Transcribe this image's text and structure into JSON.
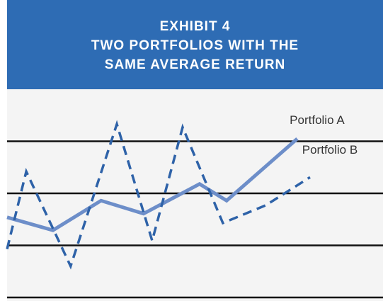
{
  "chart_data": {
    "type": "line",
    "title": [
      "EXHIBIT 4",
      "TWO PORTFOLIOS WITH THE",
      "SAME AVERAGE RETURN"
    ],
    "xlim": [
      0,
      100
    ],
    "ylim": [
      0,
      4
    ],
    "yticks": [
      0,
      1,
      2,
      3
    ],
    "grid": true,
    "series": [
      {
        "name": "Portfolio A",
        "color": "#6d8ec9",
        "dashed": false,
        "x": [
          0,
          12.2,
          25.0,
          36.3,
          51.2,
          58.4,
          77.2
        ],
        "values": [
          1.54,
          1.29,
          1.86,
          1.61,
          2.18,
          1.86,
          3.05
        ]
      },
      {
        "name": "Portfolio B",
        "color": "#2e62a8",
        "dashed": true,
        "x": [
          0,
          5.1,
          16.9,
          29.2,
          38.6,
          46.7,
          57.4,
          68.8,
          80.6
        ],
        "values": [
          0.93,
          2.42,
          0.6,
          3.33,
          1.09,
          3.27,
          1.43,
          1.77,
          2.31
        ]
      }
    ]
  }
}
